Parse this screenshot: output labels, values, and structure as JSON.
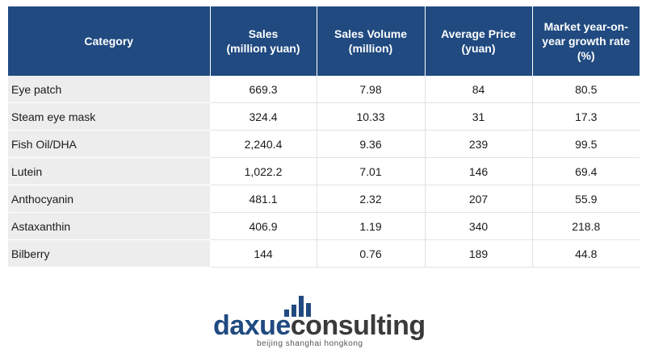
{
  "chart_data": {
    "type": "table",
    "columns": [
      "Category",
      "Sales\n(million yuan)",
      "Sales Volume\n(million)",
      "Average Price\n(yuan)",
      "Market year-on-year growth rate (%)"
    ],
    "rows": [
      [
        "Eye patch",
        "669.3",
        "7.98",
        "84",
        "80.5"
      ],
      [
        "Steam eye mask",
        "324.4",
        "10.33",
        "31",
        "17.3"
      ],
      [
        "Fish Oil/DHA",
        "2,240.4",
        "9.36",
        "239",
        "99.5"
      ],
      [
        "Lutein",
        "1,022.2",
        "7.01",
        "146",
        "69.4"
      ],
      [
        "Anthocyanin",
        "481.1",
        "2.32",
        "207",
        "55.9"
      ],
      [
        "Astaxanthin",
        "406.9",
        "1.19",
        "340",
        "218.8"
      ],
      [
        "Bilberry",
        "144",
        "0.76",
        "189",
        "44.8"
      ]
    ]
  },
  "logo": {
    "brand_part1": "daxue",
    "brand_part2": "consulting",
    "tagline": "beijing shanghai hongkong",
    "colors": {
      "primary": "#204a80",
      "secondary": "#3a3a3a"
    }
  },
  "colors": {
    "header_bg": "#204a80",
    "category_bg": "#ededed"
  }
}
